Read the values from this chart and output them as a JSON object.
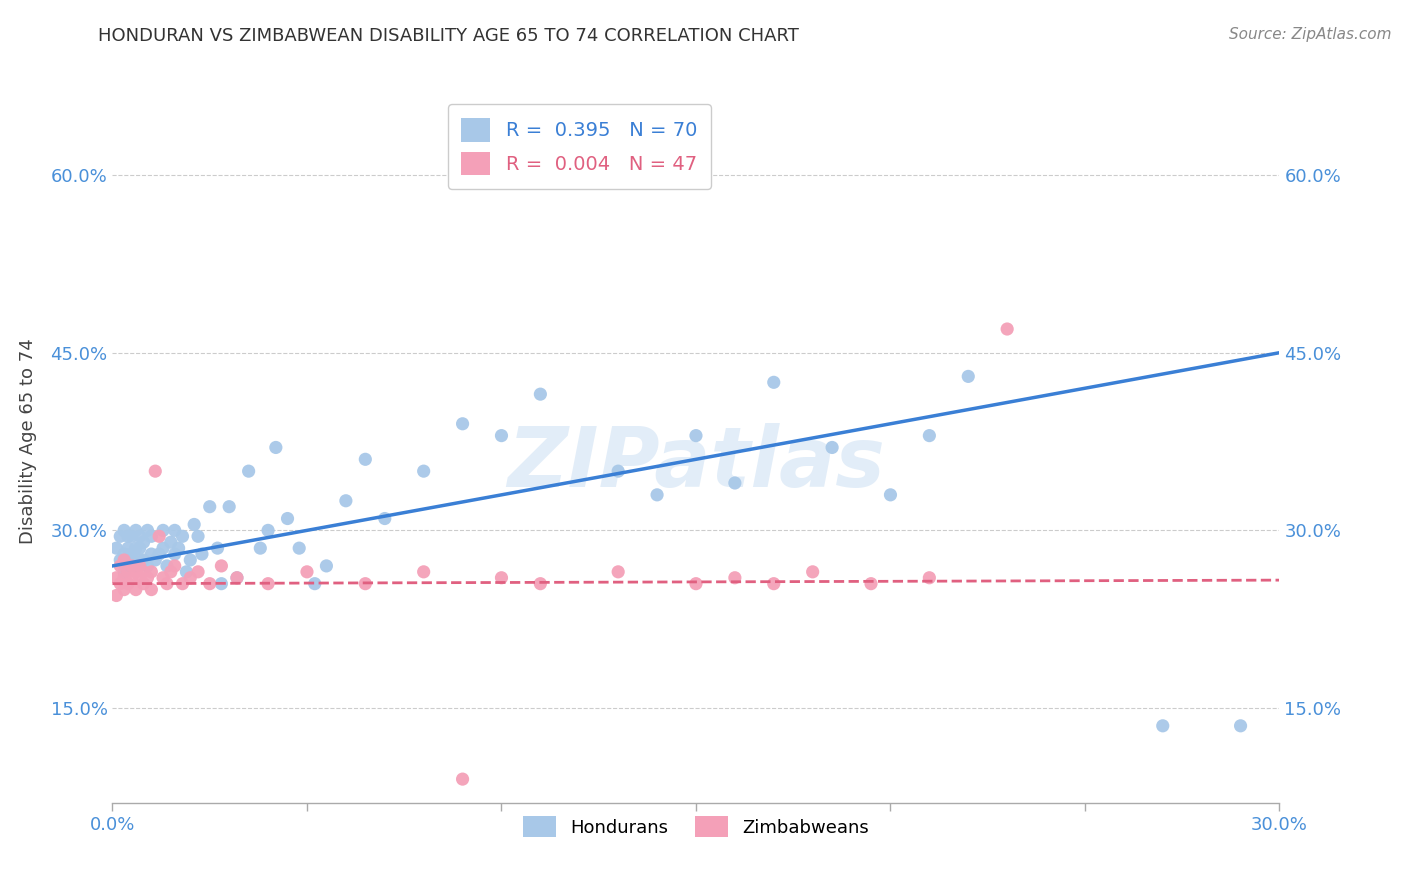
{
  "title": "HONDURAN VS ZIMBABWEAN DISABILITY AGE 65 TO 74 CORRELATION CHART",
  "source": "Source: ZipAtlas.com",
  "ylabel": "Disability Age 65 to 74",
  "xlim": [
    0.0,
    0.3
  ],
  "ylim": [
    0.07,
    0.68
  ],
  "xticks": [
    0.0,
    0.05,
    0.1,
    0.15,
    0.2,
    0.25,
    0.3
  ],
  "xticklabels": [
    "0.0%",
    "",
    "",
    "",
    "",
    "",
    "30.0%"
  ],
  "yticks": [
    0.15,
    0.3,
    0.45,
    0.6
  ],
  "yticklabels": [
    "15.0%",
    "30.0%",
    "45.0%",
    "60.0%"
  ],
  "honduran_R": "0.395",
  "honduran_N": "70",
  "zimbabwean_R": "0.004",
  "zimbabwean_N": "47",
  "honduran_color": "#a8c8e8",
  "zimbabwean_color": "#f4a0b8",
  "honduran_line_color": "#3a7fd5",
  "zimbabwean_line_color": "#e06080",
  "watermark": "ZIPatlas",
  "honduran_line_x0": 0.0,
  "honduran_line_y0": 0.27,
  "honduran_line_x1": 0.3,
  "honduran_line_y1": 0.45,
  "zimbabwean_line_x0": 0.0,
  "zimbabwean_line_y0": 0.255,
  "zimbabwean_line_x1": 0.3,
  "zimbabwean_line_y1": 0.258,
  "honduran_x": [
    0.001,
    0.002,
    0.002,
    0.003,
    0.003,
    0.003,
    0.004,
    0.004,
    0.004,
    0.005,
    0.005,
    0.005,
    0.006,
    0.006,
    0.006,
    0.007,
    0.007,
    0.007,
    0.008,
    0.008,
    0.009,
    0.009,
    0.01,
    0.01,
    0.011,
    0.012,
    0.013,
    0.013,
    0.014,
    0.015,
    0.016,
    0.016,
    0.017,
    0.018,
    0.019,
    0.02,
    0.021,
    0.022,
    0.023,
    0.025,
    0.027,
    0.028,
    0.03,
    0.032,
    0.035,
    0.038,
    0.04,
    0.042,
    0.045,
    0.048,
    0.052,
    0.055,
    0.06,
    0.065,
    0.07,
    0.08,
    0.09,
    0.1,
    0.11,
    0.13,
    0.14,
    0.15,
    0.16,
    0.17,
    0.185,
    0.2,
    0.21,
    0.22,
    0.27,
    0.29
  ],
  "honduran_y": [
    0.285,
    0.275,
    0.295,
    0.265,
    0.28,
    0.3,
    0.27,
    0.285,
    0.295,
    0.275,
    0.28,
    0.295,
    0.27,
    0.285,
    0.3,
    0.275,
    0.285,
    0.295,
    0.275,
    0.29,
    0.27,
    0.3,
    0.28,
    0.295,
    0.275,
    0.28,
    0.285,
    0.3,
    0.27,
    0.29,
    0.28,
    0.3,
    0.285,
    0.295,
    0.265,
    0.275,
    0.305,
    0.295,
    0.28,
    0.32,
    0.285,
    0.255,
    0.32,
    0.26,
    0.35,
    0.285,
    0.3,
    0.37,
    0.31,
    0.285,
    0.255,
    0.27,
    0.325,
    0.36,
    0.31,
    0.35,
    0.39,
    0.38,
    0.415,
    0.35,
    0.33,
    0.38,
    0.34,
    0.425,
    0.37,
    0.33,
    0.38,
    0.43,
    0.135,
    0.135
  ],
  "zimbabwean_x": [
    0.001,
    0.001,
    0.002,
    0.002,
    0.003,
    0.003,
    0.003,
    0.004,
    0.004,
    0.005,
    0.005,
    0.006,
    0.006,
    0.007,
    0.007,
    0.008,
    0.008,
    0.009,
    0.01,
    0.01,
    0.011,
    0.012,
    0.013,
    0.014,
    0.015,
    0.016,
    0.018,
    0.02,
    0.022,
    0.025,
    0.028,
    0.032,
    0.04,
    0.05,
    0.065,
    0.08,
    0.1,
    0.11,
    0.13,
    0.15,
    0.16,
    0.17,
    0.18,
    0.195,
    0.21,
    0.23,
    0.09
  ],
  "zimbabwean_y": [
    0.26,
    0.245,
    0.255,
    0.27,
    0.25,
    0.26,
    0.275,
    0.255,
    0.265,
    0.26,
    0.27,
    0.25,
    0.265,
    0.26,
    0.27,
    0.255,
    0.265,
    0.26,
    0.25,
    0.265,
    0.35,
    0.295,
    0.26,
    0.255,
    0.265,
    0.27,
    0.255,
    0.26,
    0.265,
    0.255,
    0.27,
    0.26,
    0.255,
    0.265,
    0.255,
    0.265,
    0.26,
    0.255,
    0.265,
    0.255,
    0.26,
    0.255,
    0.265,
    0.255,
    0.26,
    0.47,
    0.09
  ]
}
